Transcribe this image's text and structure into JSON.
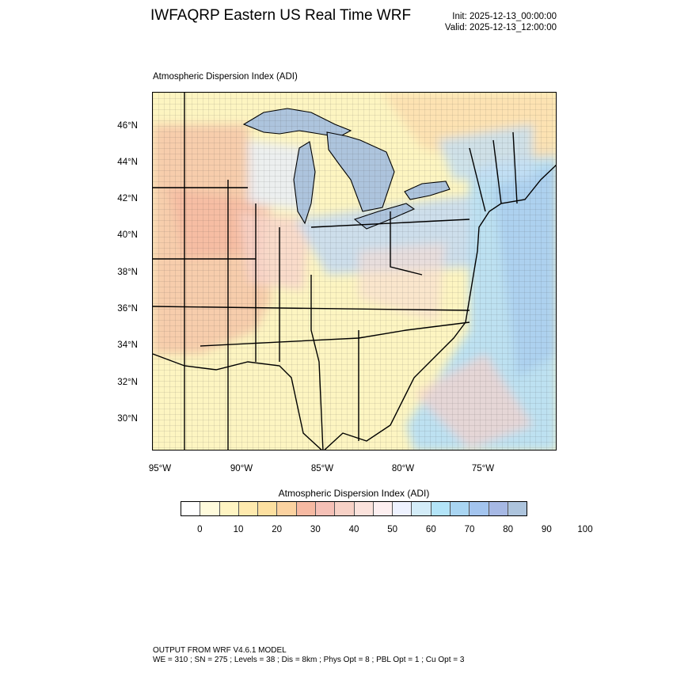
{
  "header": {
    "title": "IWFAQRP Eastern US Real Time WRF",
    "init": "Init: 2025-12-13_00:00:00",
    "valid": "Valid: 2025-12-13_12:00:00"
  },
  "map": {
    "field_label": "Atmospheric Dispersion Index   (ADI)",
    "lat_labels": [
      "46°N",
      "44°N",
      "42°N",
      "40°N",
      "38°N",
      "36°N",
      "34°N",
      "32°N",
      "30°N"
    ],
    "lon_labels": [
      "95°W",
      "90°W",
      "85°W",
      "80°W",
      "75°W"
    ],
    "colors": {
      "water": "#adc4dd",
      "warm": "#f6c7a8",
      "yellow": "#fdf5c1",
      "blue": "#c8e4f6",
      "boundary": "#000000"
    }
  },
  "colorbar": {
    "title": "Atmospheric Dispersion Index  (ADI)",
    "colors": [
      "#ffffff",
      "#fffbdc",
      "#fff4c2",
      "#ffeaae",
      "#fde0a0",
      "#fbd2a0",
      "#f6b9a2",
      "#f5c0b6",
      "#f7d1c6",
      "#fbe2dc",
      "#fdeff0",
      "#eef2ff",
      "#d3ecf8",
      "#b3e4f8",
      "#a9d5f2",
      "#a3c4ee",
      "#a6b8e4",
      "#adc4dd"
    ],
    "ticks": [
      "0",
      "10",
      "20",
      "30",
      "40",
      "50",
      "60",
      "70",
      "80",
      "90",
      "100"
    ]
  },
  "footer": {
    "line1": "OUTPUT FROM WRF V4.6.1 MODEL",
    "line2": "WE = 310 ; SN = 275 ; Levels = 38 ; Dis = 8km ; Phys Opt = 8 ; PBL Opt = 1 ; Cu Opt = 3"
  }
}
